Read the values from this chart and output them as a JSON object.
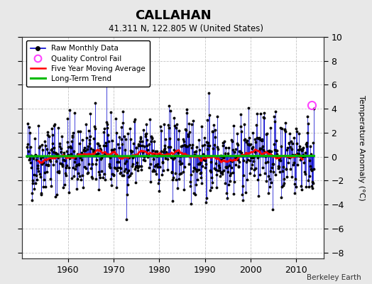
{
  "title": "CALLAHAN",
  "subtitle": "41.311 N, 122.805 W (United States)",
  "ylabel": "Temperature Anomaly (°C)",
  "credit": "Berkeley Earth",
  "xlim": [
    1950,
    2016
  ],
  "ylim": [
    -8.5,
    10
  ],
  "yticks": [
    -8,
    -6,
    -4,
    -2,
    0,
    2,
    4,
    6,
    8,
    10
  ],
  "xticks": [
    1960,
    1970,
    1980,
    1990,
    2000,
    2010
  ],
  "raw_color": "#0000cc",
  "marker_color": "#000000",
  "moving_avg_color": "#ff0000",
  "trend_color": "#00bb00",
  "qc_fail_color": "#ff44ff",
  "plot_bg_color": "#ffffff",
  "fig_bg_color": "#e8e8e8",
  "grid_color": "#aaaaaa",
  "seed": 42,
  "n_months": 756,
  "start_year": 1951.0,
  "qc_fail_x": 2013.4,
  "qc_fail_y": 4.3
}
